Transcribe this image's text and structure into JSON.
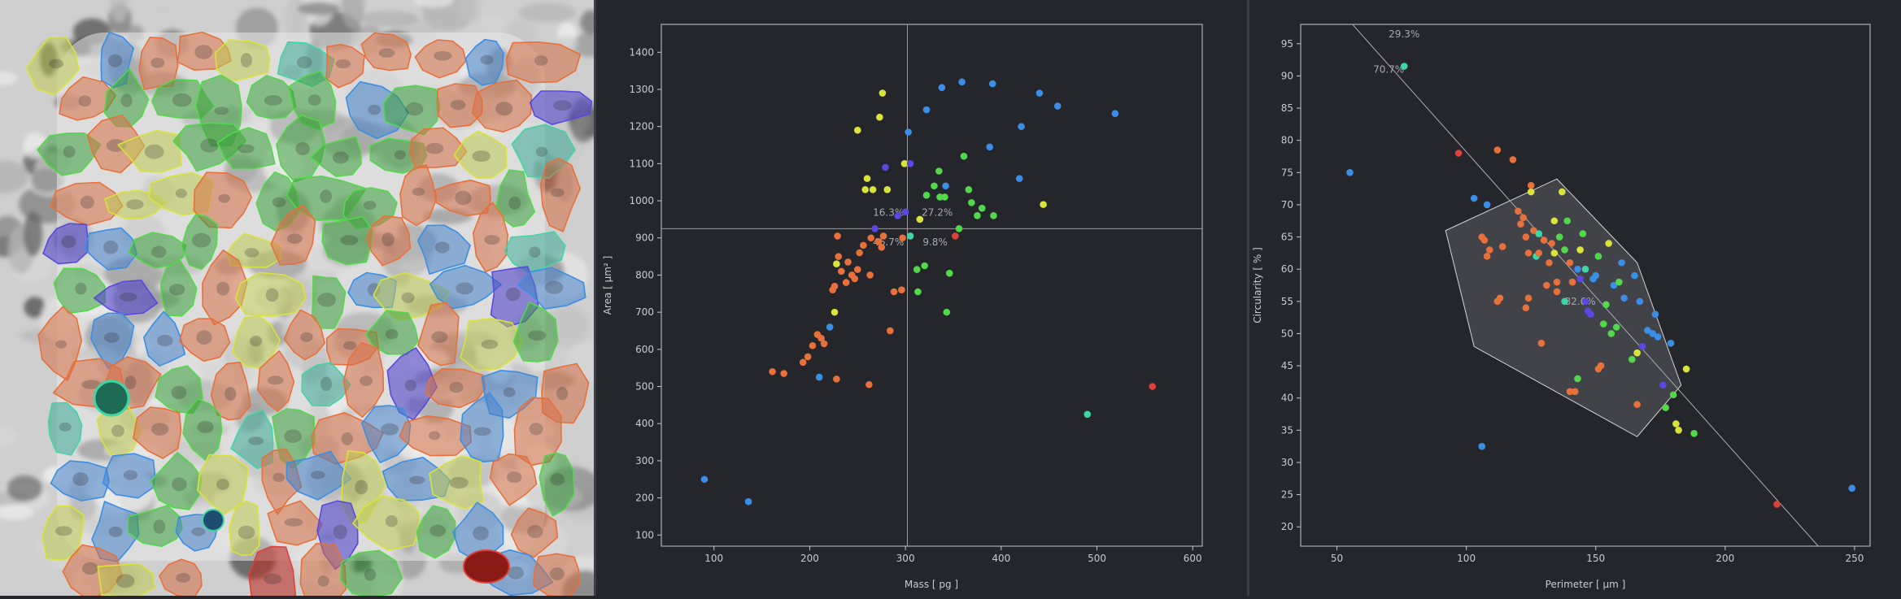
{
  "colors": {
    "background": "#24262b",
    "axis": "#c7c9ce",
    "orange": "#e8703a",
    "blue": "#3a8ee6",
    "green": "#52d84a",
    "teal": "#3fd6a6",
    "yellow": "#d9e33c",
    "indigo": "#5a48e0",
    "red": "#e0403a"
  },
  "image_panel": {
    "icons": [
      "microscopy-cell-segmentation-image"
    ]
  },
  "chart_data": [
    {
      "type": "scatter",
      "title": "",
      "xlabel": "Mass [ pg ]",
      "ylabel": "Area [ µm² ]",
      "xlim": [
        45,
        610
      ],
      "ylim": [
        70,
        1475
      ],
      "xticks": [
        100,
        200,
        300,
        400,
        500,
        600
      ],
      "yticks": [
        100,
        200,
        300,
        400,
        500,
        600,
        700,
        800,
        900,
        1000,
        1100,
        1200,
        1300,
        1400
      ],
      "grid": false,
      "gates": {
        "x": 302,
        "y": 925
      },
      "annotations": [
        {
          "text": "16.3%",
          "x": 266,
          "y": 960
        },
        {
          "text": "27.2%",
          "x": 317,
          "y": 960
        },
        {
          "text": "46.7%",
          "x": 266,
          "y": 880
        },
        {
          "text": "9.8%",
          "x": 318,
          "y": 880
        }
      ],
      "points": [
        {
          "x": 90,
          "y": 250,
          "c": "blue"
        },
        {
          "x": 136,
          "y": 190,
          "c": "blue"
        },
        {
          "x": 161,
          "y": 540,
          "c": "orange"
        },
        {
          "x": 173,
          "y": 535,
          "c": "orange"
        },
        {
          "x": 193,
          "y": 565,
          "c": "orange"
        },
        {
          "x": 198,
          "y": 580,
          "c": "orange"
        },
        {
          "x": 203,
          "y": 610,
          "c": "orange"
        },
        {
          "x": 210,
          "y": 525,
          "c": "blue"
        },
        {
          "x": 208,
          "y": 640,
          "c": "orange"
        },
        {
          "x": 212,
          "y": 630,
          "c": "orange"
        },
        {
          "x": 215,
          "y": 615,
          "c": "orange"
        },
        {
          "x": 221,
          "y": 660,
          "c": "blue"
        },
        {
          "x": 228,
          "y": 520,
          "c": "orange"
        },
        {
          "x": 224,
          "y": 760,
          "c": "orange"
        },
        {
          "x": 226,
          "y": 770,
          "c": "orange"
        },
        {
          "x": 226,
          "y": 700,
          "c": "yellow"
        },
        {
          "x": 228,
          "y": 830,
          "c": "yellow"
        },
        {
          "x": 230,
          "y": 850,
          "c": "orange"
        },
        {
          "x": 233,
          "y": 810,
          "c": "orange"
        },
        {
          "x": 229,
          "y": 905,
          "c": "orange"
        },
        {
          "x": 238,
          "y": 780,
          "c": "orange"
        },
        {
          "x": 240,
          "y": 835,
          "c": "orange"
        },
        {
          "x": 244,
          "y": 800,
          "c": "orange"
        },
        {
          "x": 247,
          "y": 790,
          "c": "orange"
        },
        {
          "x": 250,
          "y": 815,
          "c": "orange"
        },
        {
          "x": 252,
          "y": 860,
          "c": "orange"
        },
        {
          "x": 256,
          "y": 880,
          "c": "orange"
        },
        {
          "x": 258,
          "y": 1030,
          "c": "yellow"
        },
        {
          "x": 260,
          "y": 1060,
          "c": "yellow"
        },
        {
          "x": 263,
          "y": 800,
          "c": "orange"
        },
        {
          "x": 264,
          "y": 900,
          "c": "orange"
        },
        {
          "x": 266,
          "y": 1030,
          "c": "yellow"
        },
        {
          "x": 262,
          "y": 505,
          "c": "orange"
        },
        {
          "x": 268,
          "y": 925,
          "c": "indigo"
        },
        {
          "x": 272,
          "y": 890,
          "c": "orange"
        },
        {
          "x": 275,
          "y": 875,
          "c": "orange"
        },
        {
          "x": 277,
          "y": 905,
          "c": "orange"
        },
        {
          "x": 279,
          "y": 1090,
          "c": "indigo"
        },
        {
          "x": 281,
          "y": 1030,
          "c": "yellow"
        },
        {
          "x": 273,
          "y": 1225,
          "c": "yellow"
        },
        {
          "x": 276,
          "y": 1290,
          "c": "yellow"
        },
        {
          "x": 250,
          "y": 1190,
          "c": "yellow"
        },
        {
          "x": 284,
          "y": 650,
          "c": "orange"
        },
        {
          "x": 288,
          "y": 755,
          "c": "orange"
        },
        {
          "x": 292,
          "y": 960,
          "c": "indigo"
        },
        {
          "x": 296,
          "y": 760,
          "c": "orange"
        },
        {
          "x": 297,
          "y": 900,
          "c": "orange"
        },
        {
          "x": 299,
          "y": 1100,
          "c": "yellow"
        },
        {
          "x": 300,
          "y": 970,
          "c": "indigo"
        },
        {
          "x": 305,
          "y": 1100,
          "c": "indigo"
        },
        {
          "x": 303,
          "y": 1185,
          "c": "blue"
        },
        {
          "x": 305,
          "y": 905,
          "c": "teal"
        },
        {
          "x": 312,
          "y": 815,
          "c": "green"
        },
        {
          "x": 315,
          "y": 950,
          "c": "yellow"
        },
        {
          "x": 313,
          "y": 755,
          "c": "green"
        },
        {
          "x": 320,
          "y": 825,
          "c": "green"
        },
        {
          "x": 322,
          "y": 1015,
          "c": "green"
        },
        {
          "x": 322,
          "y": 1245,
          "c": "blue"
        },
        {
          "x": 330,
          "y": 1040,
          "c": "green"
        },
        {
          "x": 335,
          "y": 1080,
          "c": "green"
        },
        {
          "x": 336,
          "y": 1010,
          "c": "green"
        },
        {
          "x": 338,
          "y": 1305,
          "c": "blue"
        },
        {
          "x": 341,
          "y": 1010,
          "c": "green"
        },
        {
          "x": 343,
          "y": 700,
          "c": "green"
        },
        {
          "x": 342,
          "y": 1040,
          "c": "blue"
        },
        {
          "x": 346,
          "y": 805,
          "c": "green"
        },
        {
          "x": 352,
          "y": 905,
          "c": "red"
        },
        {
          "x": 356,
          "y": 925,
          "c": "green"
        },
        {
          "x": 359,
          "y": 1320,
          "c": "blue"
        },
        {
          "x": 361,
          "y": 1120,
          "c": "green"
        },
        {
          "x": 366,
          "y": 1030,
          "c": "green"
        },
        {
          "x": 369,
          "y": 995,
          "c": "green"
        },
        {
          "x": 375,
          "y": 960,
          "c": "green"
        },
        {
          "x": 380,
          "y": 980,
          "c": "green"
        },
        {
          "x": 388,
          "y": 1145,
          "c": "blue"
        },
        {
          "x": 391,
          "y": 1315,
          "c": "blue"
        },
        {
          "x": 392,
          "y": 960,
          "c": "green"
        },
        {
          "x": 419,
          "y": 1060,
          "c": "blue"
        },
        {
          "x": 421,
          "y": 1200,
          "c": "blue"
        },
        {
          "x": 440,
          "y": 1290,
          "c": "blue"
        },
        {
          "x": 444,
          "y": 990,
          "c": "yellow"
        },
        {
          "x": 459,
          "y": 1255,
          "c": "blue"
        },
        {
          "x": 490,
          "y": 425,
          "c": "teal"
        },
        {
          "x": 519,
          "y": 1235,
          "c": "blue"
        },
        {
          "x": 558,
          "y": 500,
          "c": "red"
        }
      ]
    },
    {
      "type": "scatter",
      "title": "",
      "xlabel": "Perimeter [ µm ]",
      "ylabel": "Circularity [ % ]",
      "xlim": [
        36,
        256
      ],
      "ylim": [
        17,
        98
      ],
      "xticks": [
        50,
        100,
        150,
        200,
        250
      ],
      "yticks": [
        20,
        25,
        30,
        35,
        40,
        45,
        50,
        55,
        60,
        65,
        70,
        75,
        80,
        85,
        90,
        95
      ],
      "grid": false,
      "boundary_line": {
        "from": [
          56,
          98
        ],
        "to": [
          236,
          17
        ]
      },
      "polygon": [
        [
          92,
          66
        ],
        [
          135,
          74
        ],
        [
          166,
          61
        ],
        [
          183,
          42
        ],
        [
          166,
          34
        ],
        [
          103,
          48
        ]
      ],
      "annotations": [
        {
          "text": "29.3%",
          "x": 70,
          "y": 96
        },
        {
          "text": "70.7%",
          "x": 64,
          "y": 90.5
        },
        {
          "text": "82.6%",
          "x": 138,
          "y": 54.5
        }
      ],
      "points": [
        {
          "x": 55,
          "y": 75,
          "c": "blue"
        },
        {
          "x": 76,
          "y": 91.5,
          "c": "teal"
        },
        {
          "x": 97,
          "y": 78,
          "c": "red"
        },
        {
          "x": 103,
          "y": 71,
          "c": "blue"
        },
        {
          "x": 106,
          "y": 32.5,
          "c": "blue"
        },
        {
          "x": 108,
          "y": 70,
          "c": "blue"
        },
        {
          "x": 107,
          "y": 64.5,
          "c": "orange"
        },
        {
          "x": 108,
          "y": 62,
          "c": "orange"
        },
        {
          "x": 106,
          "y": 65,
          "c": "orange"
        },
        {
          "x": 109,
          "y": 63,
          "c": "orange"
        },
        {
          "x": 112,
          "y": 55,
          "c": "orange"
        },
        {
          "x": 113,
          "y": 55.5,
          "c": "orange"
        },
        {
          "x": 114,
          "y": 63.5,
          "c": "orange"
        },
        {
          "x": 112,
          "y": 78.5,
          "c": "orange"
        },
        {
          "x": 118,
          "y": 77,
          "c": "orange"
        },
        {
          "x": 120,
          "y": 69,
          "c": "orange"
        },
        {
          "x": 121,
          "y": 67,
          "c": "orange"
        },
        {
          "x": 122,
          "y": 68,
          "c": "orange"
        },
        {
          "x": 123,
          "y": 65,
          "c": "orange"
        },
        {
          "x": 123,
          "y": 54,
          "c": "orange"
        },
        {
          "x": 124,
          "y": 55.5,
          "c": "orange"
        },
        {
          "x": 124,
          "y": 62.5,
          "c": "orange"
        },
        {
          "x": 125,
          "y": 72,
          "c": "yellow"
        },
        {
          "x": 125,
          "y": 73,
          "c": "orange"
        },
        {
          "x": 126,
          "y": 66,
          "c": "orange"
        },
        {
          "x": 127,
          "y": 62,
          "c": "teal"
        },
        {
          "x": 128,
          "y": 65.5,
          "c": "teal"
        },
        {
          "x": 128,
          "y": 62.5,
          "c": "orange"
        },
        {
          "x": 129,
          "y": 48.5,
          "c": "orange"
        },
        {
          "x": 130,
          "y": 64.5,
          "c": "orange"
        },
        {
          "x": 131,
          "y": 57.5,
          "c": "orange"
        },
        {
          "x": 132,
          "y": 61,
          "c": "orange"
        },
        {
          "x": 133,
          "y": 64,
          "c": "orange"
        },
        {
          "x": 134,
          "y": 62.5,
          "c": "yellow"
        },
        {
          "x": 134,
          "y": 67.5,
          "c": "yellow"
        },
        {
          "x": 135,
          "y": 58,
          "c": "orange"
        },
        {
          "x": 135,
          "y": 56.5,
          "c": "orange"
        },
        {
          "x": 136,
          "y": 65,
          "c": "green"
        },
        {
          "x": 137,
          "y": 72,
          "c": "yellow"
        },
        {
          "x": 138,
          "y": 63,
          "c": "green"
        },
        {
          "x": 138,
          "y": 55,
          "c": "teal"
        },
        {
          "x": 139,
          "y": 67.5,
          "c": "green"
        },
        {
          "x": 140,
          "y": 61,
          "c": "orange"
        },
        {
          "x": 140,
          "y": 41,
          "c": "orange"
        },
        {
          "x": 141,
          "y": 58,
          "c": "orange"
        },
        {
          "x": 142,
          "y": 41,
          "c": "orange"
        },
        {
          "x": 143,
          "y": 60,
          "c": "blue"
        },
        {
          "x": 143,
          "y": 43,
          "c": "green"
        },
        {
          "x": 144,
          "y": 58.5,
          "c": "indigo"
        },
        {
          "x": 144,
          "y": 63,
          "c": "yellow"
        },
        {
          "x": 145,
          "y": 65.5,
          "c": "green"
        },
        {
          "x": 146,
          "y": 60,
          "c": "teal"
        },
        {
          "x": 146,
          "y": 55,
          "c": "indigo"
        },
        {
          "x": 147,
          "y": 53.5,
          "c": "indigo"
        },
        {
          "x": 148,
          "y": 53,
          "c": "indigo"
        },
        {
          "x": 149,
          "y": 58.5,
          "c": "blue"
        },
        {
          "x": 150,
          "y": 59,
          "c": "blue"
        },
        {
          "x": 151,
          "y": 62,
          "c": "green"
        },
        {
          "x": 151,
          "y": 44.5,
          "c": "orange"
        },
        {
          "x": 152,
          "y": 45,
          "c": "orange"
        },
        {
          "x": 153,
          "y": 51.5,
          "c": "green"
        },
        {
          "x": 154,
          "y": 54.5,
          "c": "green"
        },
        {
          "x": 155,
          "y": 64,
          "c": "yellow"
        },
        {
          "x": 156,
          "y": 50,
          "c": "green"
        },
        {
          "x": 157,
          "y": 57.5,
          "c": "blue"
        },
        {
          "x": 158,
          "y": 51,
          "c": "green"
        },
        {
          "x": 159,
          "y": 58,
          "c": "green"
        },
        {
          "x": 160,
          "y": 61,
          "c": "blue"
        },
        {
          "x": 161,
          "y": 55.5,
          "c": "blue"
        },
        {
          "x": 164,
          "y": 46,
          "c": "green"
        },
        {
          "x": 165,
          "y": 59,
          "c": "blue"
        },
        {
          "x": 166,
          "y": 39,
          "c": "orange"
        },
        {
          "x": 166,
          "y": 47,
          "c": "yellow"
        },
        {
          "x": 167,
          "y": 55,
          "c": "blue"
        },
        {
          "x": 168,
          "y": 48,
          "c": "indigo"
        },
        {
          "x": 170,
          "y": 50.5,
          "c": "blue"
        },
        {
          "x": 172,
          "y": 50,
          "c": "blue"
        },
        {
          "x": 173,
          "y": 53,
          "c": "blue"
        },
        {
          "x": 174,
          "y": 49.5,
          "c": "blue"
        },
        {
          "x": 176,
          "y": 42,
          "c": "indigo"
        },
        {
          "x": 177,
          "y": 38.5,
          "c": "green"
        },
        {
          "x": 179,
          "y": 48.5,
          "c": "blue"
        },
        {
          "x": 180,
          "y": 40.5,
          "c": "green"
        },
        {
          "x": 181,
          "y": 36,
          "c": "yellow"
        },
        {
          "x": 182,
          "y": 35,
          "c": "yellow"
        },
        {
          "x": 185,
          "y": 44.5,
          "c": "yellow"
        },
        {
          "x": 188,
          "y": 34.5,
          "c": "green"
        },
        {
          "x": 220,
          "y": 23.5,
          "c": "red"
        },
        {
          "x": 249,
          "y": 26,
          "c": "blue"
        }
      ]
    }
  ]
}
